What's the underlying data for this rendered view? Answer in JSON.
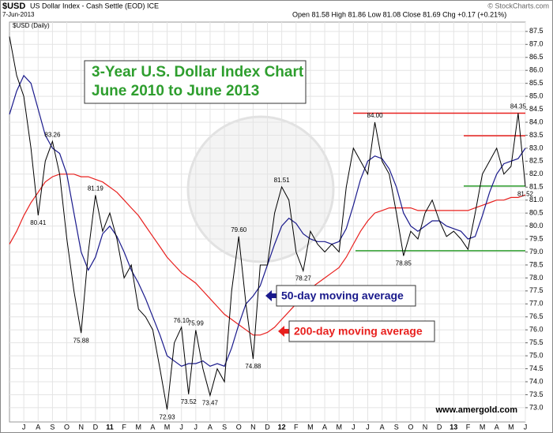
{
  "chart_data": {
    "type": "line",
    "symbol": "$USD",
    "name": "US Dollar Index - Cash Settle (EOD) ICE",
    "date": "7-Jun-2013",
    "quote": "Open 81.58  High 81.86  Low 81.08  Close 81.69  Chg +0.17 (+0.21%)",
    "credit": "© StockCharts.com",
    "title": "3-Year U.S. Dollar Index Chart",
    "subtitle": "June 2010 to June 2013",
    "footer": "www.amergold.com",
    "categories": [
      null,
      null,
      "J",
      null,
      "A",
      null,
      "S",
      null,
      "O",
      null,
      "N",
      null,
      "D",
      null,
      "11",
      null,
      "F",
      null,
      "M",
      null,
      "A",
      null,
      "M",
      null,
      "J",
      null,
      "J",
      null,
      "A",
      null,
      "S",
      null,
      "O",
      null,
      "N",
      null,
      "D",
      null,
      "12",
      null,
      "F",
      null,
      "M",
      null,
      "A",
      null,
      "M",
      null,
      "J",
      null,
      "J",
      null,
      "A",
      null,
      "S",
      null,
      "O",
      null,
      "N",
      null,
      "D",
      null,
      "13",
      null,
      "F",
      null,
      "M",
      null,
      "A",
      null,
      "M",
      null,
      "J"
    ],
    "series": [
      {
        "name": "$USD (Daily)",
        "color": "#000000",
        "width": 1,
        "values": [
          87.3,
          85.8,
          85.0,
          83.0,
          80.41,
          82.5,
          83.26,
          82.0,
          79.5,
          77.5,
          75.88,
          79.0,
          81.19,
          79.8,
          80.5,
          79.5,
          78.0,
          78.5,
          76.8,
          76.5,
          76.0,
          74.5,
          72.93,
          75.5,
          76.1,
          73.52,
          75.99,
          74.5,
          73.47,
          74.5,
          74.0,
          77.5,
          79.6,
          77.0,
          74.88,
          78.5,
          78.5,
          80.5,
          81.51,
          81.0,
          79.0,
          78.27,
          79.8,
          79.3,
          79.0,
          79.3,
          79.0,
          81.5,
          83.0,
          82.5,
          82.0,
          84.0,
          82.5,
          82.0,
          80.5,
          78.85,
          79.8,
          79.5,
          80.5,
          81.0,
          80.2,
          79.6,
          79.8,
          79.5,
          79.1,
          80.5,
          82.0,
          82.5,
          83.0,
          82.0,
          82.3,
          84.35,
          81.52
        ],
        "value_labels": [
          null,
          null,
          null,
          null,
          "80.41",
          null,
          "83.26",
          null,
          null,
          null,
          "75.88",
          null,
          "81.19",
          null,
          null,
          null,
          null,
          null,
          null,
          null,
          null,
          null,
          "72.93",
          null,
          "76.10",
          "73.52",
          "75.99",
          null,
          "73.47",
          null,
          null,
          null,
          "79.60",
          null,
          "74.88",
          null,
          null,
          null,
          "81.51",
          null,
          null,
          "78.27",
          null,
          null,
          null,
          null,
          null,
          null,
          null,
          null,
          null,
          "84.00",
          null,
          null,
          null,
          "78.85",
          null,
          null,
          null,
          null,
          null,
          null,
          null,
          null,
          null,
          null,
          null,
          null,
          null,
          null,
          null,
          "84.35",
          "81.52"
        ]
      },
      {
        "name": "50-day moving average",
        "color": "#1a1a8c",
        "width": 1.2,
        "values": [
          84.3,
          85.2,
          85.8,
          85.5,
          84.5,
          83.5,
          83.0,
          82.8,
          82.0,
          80.5,
          79.0,
          78.3,
          78.8,
          79.7,
          80.0,
          79.6,
          79.0,
          78.3,
          77.8,
          77.2,
          76.5,
          75.8,
          75.0,
          74.8,
          74.6,
          74.7,
          74.7,
          74.8,
          74.6,
          74.7,
          74.6,
          75.3,
          76.2,
          77.0,
          77.3,
          77.7,
          78.5,
          79.3,
          80.0,
          80.3,
          80.1,
          79.7,
          79.5,
          79.4,
          79.4,
          79.3,
          79.4,
          79.9,
          80.8,
          81.8,
          82.5,
          82.7,
          82.6,
          82.2,
          81.5,
          80.5,
          80.0,
          79.8,
          80.0,
          80.2,
          80.2,
          80.0,
          79.9,
          79.8,
          79.5,
          79.6,
          80.4,
          81.3,
          82.0,
          82.4,
          82.5,
          82.6,
          83.0
        ]
      },
      {
        "name": "200-day moving average",
        "color": "#e8201e",
        "width": 1.2,
        "values": [
          79.3,
          79.8,
          80.4,
          80.9,
          81.3,
          81.7,
          81.9,
          82.0,
          82.0,
          82.0,
          81.9,
          81.9,
          81.8,
          81.7,
          81.5,
          81.3,
          81.0,
          80.7,
          80.4,
          80.0,
          79.6,
          79.2,
          78.8,
          78.5,
          78.2,
          78.0,
          77.8,
          77.5,
          77.2,
          76.9,
          76.6,
          76.4,
          76.2,
          76.0,
          75.8,
          75.8,
          75.9,
          76.1,
          76.4,
          76.7,
          77.0,
          77.3,
          77.6,
          77.8,
          78.0,
          78.2,
          78.4,
          78.8,
          79.3,
          79.8,
          80.2,
          80.5,
          80.6,
          80.7,
          80.7,
          80.7,
          80.7,
          80.6,
          80.6,
          80.6,
          80.6,
          80.6,
          80.6,
          80.6,
          80.6,
          80.7,
          80.8,
          80.9,
          81.0,
          81.0,
          81.1,
          81.1,
          81.2
        ]
      }
    ],
    "levels": [
      {
        "value": 84.35,
        "color": "#e8201e"
      },
      {
        "value": 83.48,
        "color": "#e8201e"
      },
      {
        "value": 81.54,
        "color": "#2e9e2e"
      },
      {
        "value": 79.05,
        "color": "#2e9e2e"
      }
    ],
    "ylim": [
      72.45,
      87.86
    ],
    "yticks": [
      {
        "value": 73,
        "label": "73.0"
      },
      73.5,
      {
        "value": 74,
        "label": "74.0"
      },
      74.5,
      {
        "value": 75,
        "label": "75.0"
      },
      75.5,
      {
        "value": 76,
        "label": "76.0"
      },
      76.5,
      {
        "value": 77,
        "label": "77.0"
      },
      77.5,
      {
        "value": 78,
        "label": "78.0"
      },
      78.5,
      {
        "value": 79,
        "label": "79.0"
      },
      79.5,
      {
        "value": 80,
        "label": "80.0"
      },
      80.5,
      {
        "value": 81,
        "label": "81.0"
      },
      81.5,
      {
        "value": 82,
        "label": "82.0"
      },
      82.5,
      {
        "value": 83,
        "label": "83.0"
      },
      83.5,
      {
        "value": 84,
        "label": "84.0"
      },
      84.5,
      {
        "value": 85,
        "label": "85.0"
      },
      85.5,
      {
        "value": 86,
        "label": "86.0"
      },
      86.5,
      {
        "value": 87,
        "label": "87.0"
      },
      87.5
    ],
    "grid": true
  }
}
